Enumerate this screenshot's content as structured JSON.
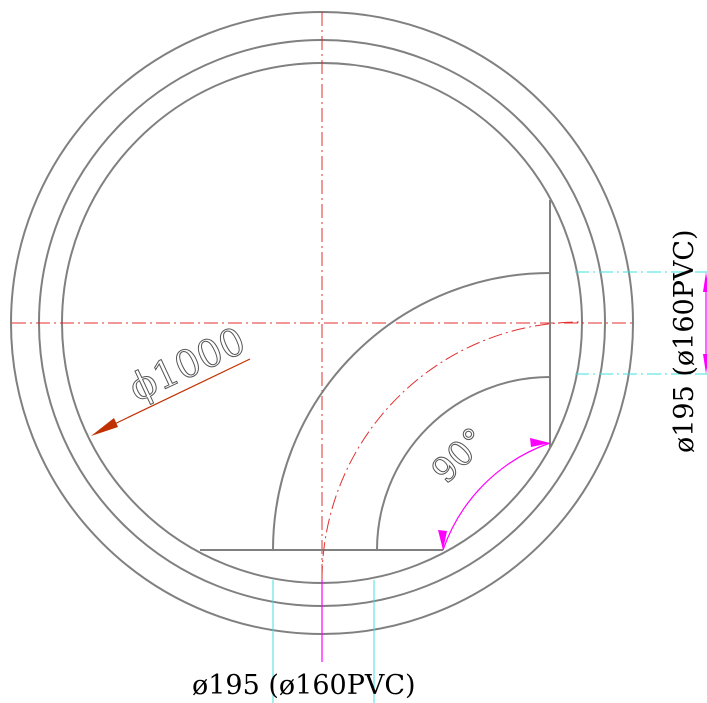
{
  "labels": {
    "main_diameter": "ϕ1000",
    "angle": "90°",
    "bottom_pipe": "ø195  (ø160PVC)",
    "right_pipe": "ø195  (ø160PVC)"
  },
  "colors": {
    "outline": "#808080",
    "centerline": "#e03030",
    "dimension_red": "#c03000",
    "dimension_magenta": "#ff00ff",
    "cyan_guides": "#40e0e0"
  }
}
